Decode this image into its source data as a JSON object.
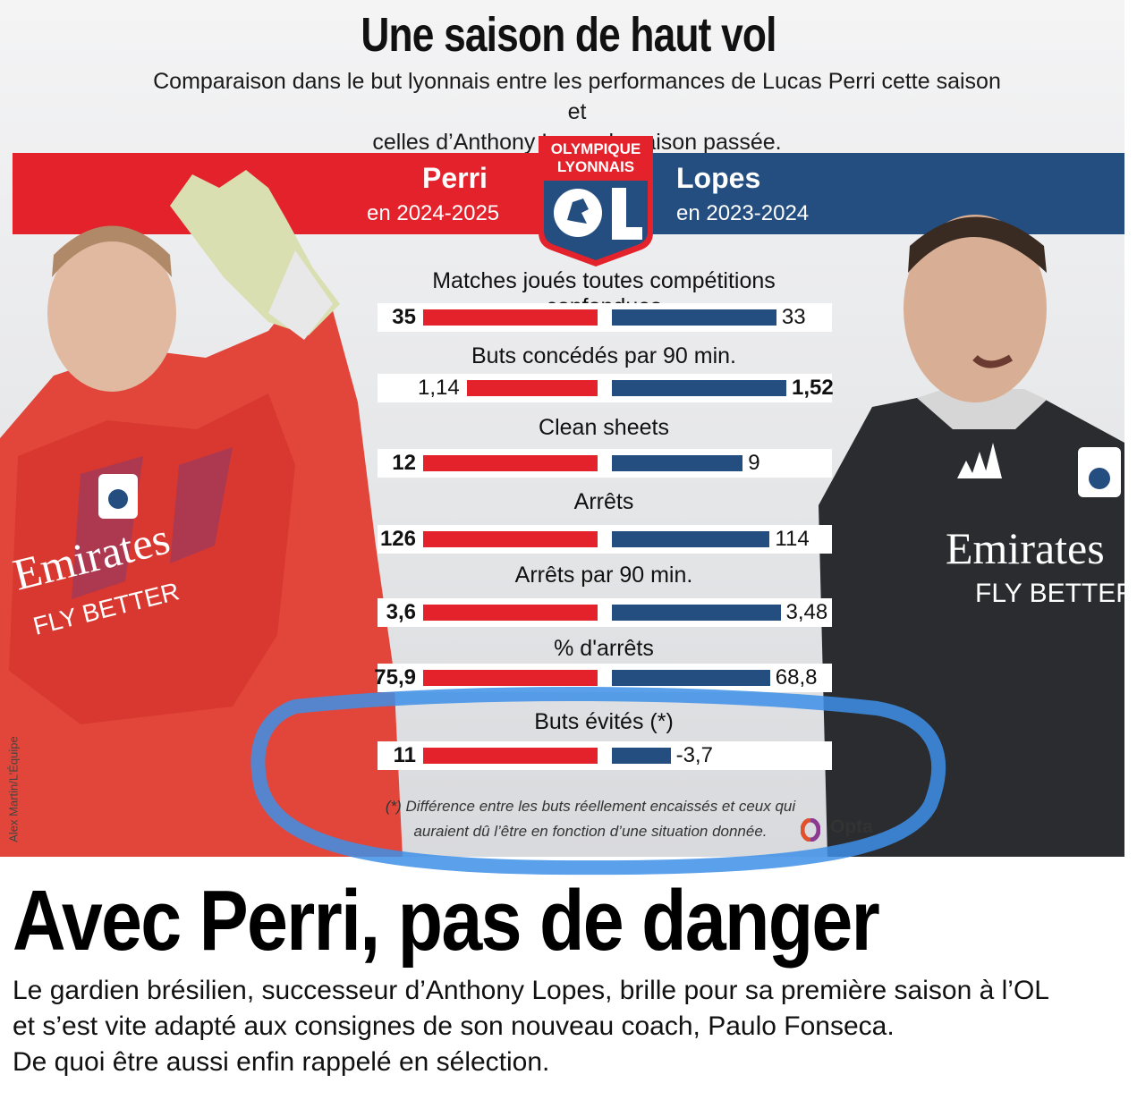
{
  "header": {
    "title": "Une saison de haut vol",
    "subtitle_line1": "Comparaison dans le but lyonnais entre les performances de Lucas Perri cette saison et",
    "subtitle_line2": "celles d’Anthony Lopes la saison passée."
  },
  "left_player": {
    "name": "Perri",
    "season": "en 2024-2025",
    "color": "#e3222b"
  },
  "right_player": {
    "name": "Lopes",
    "season": "en 2023-2024",
    "color": "#244d80"
  },
  "logo": {
    "line1": "OLYMPIQUE",
    "line2": "LYONNAIS"
  },
  "jerseys": {
    "sponsor": "Emirates",
    "slogan": "FLY BETTER"
  },
  "chart_data": {
    "type": "bar",
    "categories": [
      "Matches joués toutes compétitions confondues",
      "Buts concédés par 90 min.",
      "Clean sheets",
      "Arrêts",
      "Arrêts par 90 min.",
      "% d'arrêts",
      "Buts évités (*)"
    ],
    "series": [
      {
        "name": "Perri",
        "values": [
          35,
          1.14,
          12,
          126,
          3.6,
          75.9,
          11
        ],
        "labels": [
          "35",
          "1,14",
          "12",
          "126",
          "3,6",
          "75,9",
          "11"
        ]
      },
      {
        "name": "Lopes",
        "values": [
          33,
          1.52,
          9,
          114,
          3.48,
          68.8,
          -3.7
        ],
        "labels": [
          "33",
          "1,52",
          "9",
          "114",
          "3,48",
          "68,8",
          "-3,7"
        ]
      }
    ],
    "bold_side": [
      "left",
      "right",
      "left",
      "left",
      "left",
      "left",
      "left"
    ]
  },
  "footnote_line1": "(*) Différence entre les buts réellement encaissés et ceux qui",
  "footnote_line2": "auraient dû l’être en fonction d’une situation donnée.",
  "source": "Opta",
  "photo_credit": "Alex Martin/L’Équipe",
  "article": {
    "headline": "Avec Perri, pas de danger",
    "lede_line1": "Le gardien brésilien, successeur d’Anthony Lopes, brille pour sa première saison à l’OL",
    "lede_line2": "et s’est vite adapté aux consignes de son nouveau coach, Paulo Fonseca.",
    "lede_line3": "De quoi être aussi enfin rappelé en sélection."
  },
  "annotation": {
    "color": "#3d8fe8"
  }
}
